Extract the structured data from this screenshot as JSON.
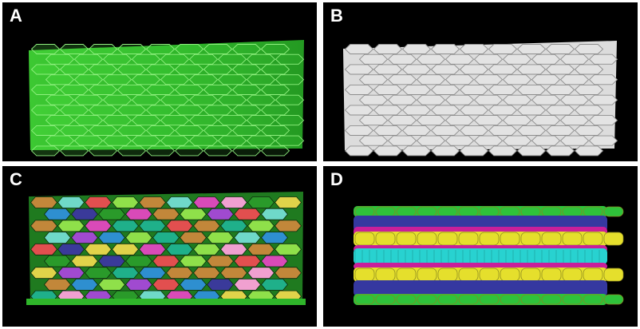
{
  "panels": [
    {
      "key": "a",
      "label": "A"
    },
    {
      "key": "b",
      "label": "B"
    },
    {
      "key": "c",
      "label": "C"
    },
    {
      "key": "d",
      "label": "D"
    }
  ],
  "colors": {
    "background": "#000000",
    "separator": "#ffffff",
    "fluorescence_green": "#2fb52a",
    "segmentation_gray": "#d9d9d9",
    "layer_green": "#2fc23a",
    "layer_blue": "#3538a0",
    "layer_yellow": "#e5df2c",
    "layer_magenta": "#c81f9a",
    "layer_cyan": "#28d2d0"
  }
}
